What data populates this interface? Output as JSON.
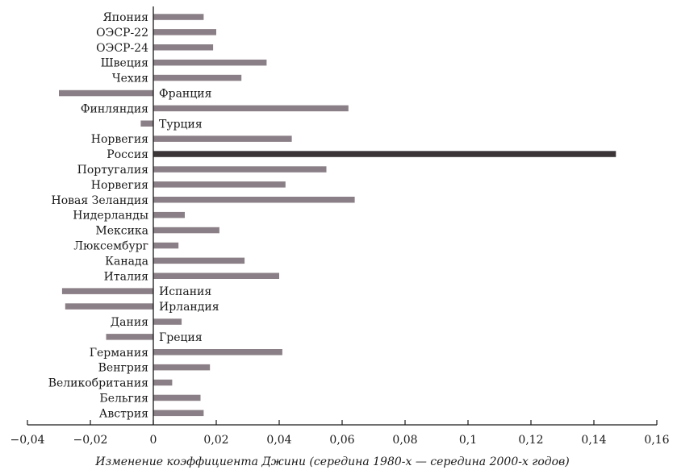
{
  "chart_data": {
    "type": "bar",
    "orientation": "horizontal",
    "xlabel": "Изменение коэффициента Джини (середина 1980-х — середина 2000-х годов)",
    "xlim": [
      -0.04,
      0.16
    ],
    "xticks": [
      -0.04,
      -0.02,
      0,
      0.02,
      0.04,
      0.06,
      0.08,
      0.1,
      0.12,
      0.14,
      0.16
    ],
    "xtick_labels": [
      "−0,04",
      "−0,02",
      "0",
      "0,02",
      "0,04",
      "0,06",
      "0,08",
      "0,1",
      "0,12",
      "0,14",
      "0,16"
    ],
    "grid": false,
    "categories": [
      "Япония",
      "ОЭСР-22",
      "ОЭСР-24",
      "Швеция",
      "Чехия",
      "Франция",
      "Финляндия",
      "Турция",
      "Норвегия",
      "Россия",
      "Португалия",
      "Норвегия",
      "Новая Зеландия",
      "Нидерланды",
      "Мексика",
      "Люксембург",
      "Канада",
      "Италия",
      "Испания",
      "Ирландия",
      "Дания",
      "Греция",
      "Германия",
      "Венгрия",
      "Великобритания",
      "Бельгия",
      "Австрия"
    ],
    "values": [
      0.016,
      0.02,
      0.019,
      0.036,
      0.028,
      -0.03,
      0.062,
      -0.004,
      0.044,
      0.147,
      0.055,
      0.042,
      0.064,
      0.01,
      0.021,
      0.008,
      0.029,
      0.04,
      -0.029,
      -0.028,
      0.009,
      -0.015,
      0.041,
      0.018,
      0.006,
      0.015,
      0.016
    ],
    "colors": {
      "bar": "#8a7f86",
      "highlight_bar": "#3b3538",
      "highlight_category": "Россия",
      "axis": "#1a1a1a",
      "text": "#1a1a1a"
    }
  }
}
